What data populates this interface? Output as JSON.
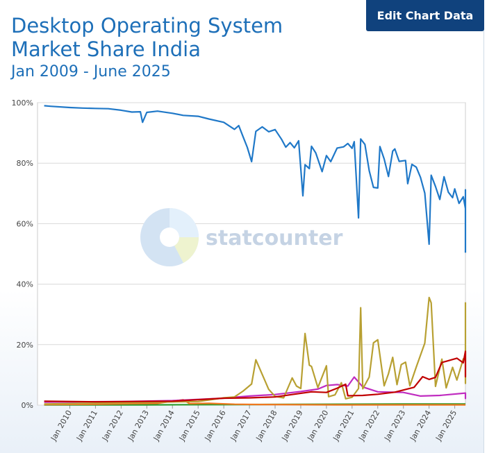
{
  "header": {
    "title": "Desktop Operating System Market Share India",
    "subtitle": "Jan 2009 - June 2025",
    "edit_button_label": "Edit Chart Data"
  },
  "watermark": {
    "text": "statcounter"
  },
  "colors": {
    "windows": "#1f78c8",
    "other": "#b8a032",
    "macos": "#c00000",
    "linux": "#c02cc0",
    "chromeos": "#2a9a2a",
    "unknown": "#f07820",
    "background_gradient": "#eef3f9"
  },
  "chart_data": {
    "type": "line",
    "title": "Desktop Operating System Market Share India",
    "subtitle": "Jan 2009 - June 2025",
    "x_start": "2009-01",
    "x_end": "2025-06",
    "ylim": [
      0,
      100
    ],
    "yticks": [
      "0%",
      "20%",
      "40%",
      "60%",
      "80%",
      "100%"
    ],
    "ytick_values": [
      0,
      20,
      40,
      60,
      80,
      100
    ],
    "xticks": [
      "Jan 2010",
      "Jan 2011",
      "Jan 2012",
      "Jan 2013",
      "Jan 2014",
      "Jan 2015",
      "Jan 2016",
      "Jan 2017",
      "Jan 2018",
      "Jan 2019",
      "Jan 2020",
      "Jan 2021",
      "Jan 2022",
      "Jan 2023",
      "Jan 2024",
      "Jan 2025"
    ],
    "grid": true,
    "legend": "none",
    "series": [
      {
        "color": "#1f78c8",
        "points": [
          [
            "2009-01",
            99
          ],
          [
            "2009-04",
            98.8
          ],
          [
            "2010-01",
            98.4
          ],
          [
            "2010-07",
            98.2
          ],
          [
            "2011-01",
            98.1
          ],
          [
            "2011-07",
            98
          ],
          [
            "2012-01",
            97.5
          ],
          [
            "2012-06",
            96.9
          ],
          [
            "2012-10",
            97
          ],
          [
            "2012-11",
            93.5
          ],
          [
            "2013-01",
            96.8
          ],
          [
            "2013-06",
            97.2
          ],
          [
            "2014-01",
            96.5
          ],
          [
            "2014-06",
            95.8
          ],
          [
            "2015-01",
            95.5
          ],
          [
            "2015-06",
            94.6
          ],
          [
            "2016-01",
            93.5
          ],
          [
            "2016-06",
            91.2
          ],
          [
            "2016-08",
            92.4
          ],
          [
            "2016-10",
            88.8
          ],
          [
            "2016-12",
            85.2
          ],
          [
            "2017-02",
            80.5
          ],
          [
            "2017-04",
            90.5
          ],
          [
            "2017-07",
            92
          ],
          [
            "2017-10",
            90.4
          ],
          [
            "2018-01",
            91.1
          ],
          [
            "2018-04",
            87.9
          ],
          [
            "2018-06",
            85.3
          ],
          [
            "2018-08",
            86.8
          ],
          [
            "2018-10",
            85.1
          ],
          [
            "2018-12",
            87.4
          ],
          [
            "2019-02",
            69.2
          ],
          [
            "2019-03",
            79.5
          ],
          [
            "2019-05",
            78.2
          ],
          [
            "2019-06",
            85.6
          ],
          [
            "2019-08",
            83.4
          ],
          [
            "2019-11",
            77.2
          ],
          [
            "2020-01",
            82.5
          ],
          [
            "2020-03",
            80.5
          ],
          [
            "2020-06",
            85
          ],
          [
            "2020-09",
            85.4
          ],
          [
            "2020-11",
            86.5
          ],
          [
            "2021-01",
            84.9
          ],
          [
            "2021-02",
            87.1
          ],
          [
            "2021-04",
            61.9
          ],
          [
            "2021-05",
            88
          ],
          [
            "2021-07",
            86.2
          ],
          [
            "2021-09",
            77.5
          ],
          [
            "2021-11",
            72
          ],
          [
            "2022-01",
            71.8
          ],
          [
            "2022-02",
            85.5
          ],
          [
            "2022-04",
            81.4
          ],
          [
            "2022-06",
            75.6
          ],
          [
            "2022-08",
            84
          ],
          [
            "2022-09",
            84.7
          ],
          [
            "2022-11",
            80.6
          ],
          [
            "2023-02",
            80.9
          ],
          [
            "2023-03",
            73.2
          ],
          [
            "2023-05",
            79.6
          ],
          [
            "2023-07",
            78.7
          ],
          [
            "2023-09",
            75.3
          ],
          [
            "2023-11",
            70.1
          ],
          [
            "2024-01",
            53.2
          ],
          [
            "2024-02",
            76
          ],
          [
            "2024-04",
            72.3
          ],
          [
            "2024-06",
            68
          ],
          [
            "2024-08",
            75.5
          ],
          [
            "2024-10",
            70.4
          ],
          [
            "2024-12",
            68.6
          ],
          [
            "2025-01",
            71.5
          ],
          [
            "2025-03",
            66.7
          ],
          [
            "2025-05",
            68.9
          ],
          [
            "2025-07",
            65
          ],
          [
            "2025-09",
            61.9
          ],
          [
            "2025-11",
            71.2
          ],
          [
            "2026-01",
            62.9
          ],
          [
            "2026-03",
            50.4
          ]
        ]
      },
      {
        "color": "#b8a032",
        "points": [
          [
            "2009-01",
            0.4
          ],
          [
            "2015-01",
            1.2
          ],
          [
            "2016-01",
            2.4
          ],
          [
            "2016-06",
            2.7
          ],
          [
            "2016-10",
            4.6
          ],
          [
            "2017-02",
            7
          ],
          [
            "2017-04",
            15
          ],
          [
            "2017-08",
            8.5
          ],
          [
            "2017-10",
            5.2
          ],
          [
            "2018-01",
            2.9
          ],
          [
            "2018-05",
            2.4
          ],
          [
            "2018-09",
            9
          ],
          [
            "2018-11",
            6.3
          ],
          [
            "2019-01",
            5.5
          ],
          [
            "2019-03",
            23.7
          ],
          [
            "2019-05",
            13.2
          ],
          [
            "2019-06",
            12.8
          ],
          [
            "2019-09",
            5.8
          ],
          [
            "2020-01",
            13
          ],
          [
            "2020-02",
            2.8
          ],
          [
            "2020-05",
            3.4
          ],
          [
            "2020-08",
            7.4
          ],
          [
            "2020-10",
            2.1
          ],
          [
            "2021-01",
            2.6
          ],
          [
            "2021-04",
            5.5
          ],
          [
            "2021-05",
            32.2
          ],
          [
            "2021-06",
            5.4
          ],
          [
            "2021-09",
            9.3
          ],
          [
            "2021-11",
            20.6
          ],
          [
            "2022-01",
            21.6
          ],
          [
            "2022-04",
            6.4
          ],
          [
            "2022-06",
            10.4
          ],
          [
            "2022-08",
            15.8
          ],
          [
            "2022-10",
            6.8
          ],
          [
            "2022-12",
            13.4
          ],
          [
            "2023-02",
            14.2
          ],
          [
            "2023-04",
            6.4
          ],
          [
            "2023-07",
            12.6
          ],
          [
            "2023-11",
            20.5
          ],
          [
            "2024-01",
            35.6
          ],
          [
            "2024-02",
            33.8
          ],
          [
            "2024-04",
            6.2
          ],
          [
            "2024-07",
            15.2
          ],
          [
            "2024-09",
            5.7
          ],
          [
            "2024-12",
            12.5
          ],
          [
            "2025-02",
            8.3
          ],
          [
            "2025-05",
            15.3
          ],
          [
            "2025-08",
            15.1
          ],
          [
            "2025-09",
            7.2
          ],
          [
            "2025-12",
            24.6
          ],
          [
            "2026-02",
            15.4
          ],
          [
            "2026-04",
            24.2
          ],
          [
            "2026-06",
            34
          ]
        ]
      },
      {
        "color": "#c00000",
        "points": [
          [
            "2009-01",
            1.3
          ],
          [
            "2011-01",
            1.1
          ],
          [
            "2014-01",
            1.3
          ],
          [
            "2016-01",
            2.3
          ],
          [
            "2017-01",
            2.4
          ],
          [
            "2018-01",
            2.7
          ],
          [
            "2018-09",
            3.5
          ],
          [
            "2019-06",
            4.4
          ],
          [
            "2020-01",
            4.2
          ],
          [
            "2020-06",
            5.6
          ],
          [
            "2020-10",
            6.9
          ],
          [
            "2020-11",
            3.1
          ],
          [
            "2021-06",
            3.2
          ],
          [
            "2022-01",
            3.6
          ],
          [
            "2022-09",
            4.3
          ],
          [
            "2023-06",
            5.9
          ],
          [
            "2023-10",
            9.4
          ],
          [
            "2024-01",
            8.5
          ],
          [
            "2024-04",
            9.2
          ],
          [
            "2024-07",
            14.1
          ],
          [
            "2024-09",
            14.5
          ],
          [
            "2024-12",
            15.1
          ],
          [
            "2025-02",
            15.5
          ],
          [
            "2025-05",
            14
          ],
          [
            "2025-09",
            17.8
          ],
          [
            "2025-12",
            9.6
          ],
          [
            "2026-03",
            9.4
          ],
          [
            "2026-06",
            10.8
          ]
        ]
      },
      {
        "color": "#c02cc0",
        "points": [
          [
            "2009-01",
            1
          ],
          [
            "2012-01",
            1.2
          ],
          [
            "2014-01",
            1.5
          ],
          [
            "2016-01",
            2.3
          ],
          [
            "2017-01",
            3
          ],
          [
            "2018-01",
            3.5
          ],
          [
            "2019-01",
            4.5
          ],
          [
            "2019-09",
            5.3
          ],
          [
            "2020-01",
            6.5
          ],
          [
            "2020-06",
            6.8
          ],
          [
            "2020-11",
            6.3
          ],
          [
            "2021-02",
            9.3
          ],
          [
            "2021-06",
            6
          ],
          [
            "2022-01",
            4.4
          ],
          [
            "2023-01",
            4.2
          ],
          [
            "2023-09",
            3
          ],
          [
            "2024-06",
            3.2
          ],
          [
            "2025-06",
            4
          ],
          [
            "2026-01",
            2.2
          ],
          [
            "2026-06",
            2.6
          ]
        ]
      },
      {
        "color": "#2a9a2a",
        "points": [
          [
            "2009-01",
            0.1
          ],
          [
            "2013-01",
            0.1
          ],
          [
            "2017-01",
            0.2
          ],
          [
            "2020-01",
            0.3
          ],
          [
            "2023-01",
            0.4
          ],
          [
            "2026-06",
            0.4
          ]
        ]
      },
      {
        "color": "#f07820",
        "points": [
          [
            "2009-01",
            0.2
          ],
          [
            "2011-01",
            0.3
          ],
          [
            "2012-06",
            0.5
          ],
          [
            "2013-06",
            0.6
          ],
          [
            "2014-06",
            1.8
          ],
          [
            "2014-09",
            0.5
          ],
          [
            "2015-06",
            0.6
          ],
          [
            "2016-06",
            0.3
          ],
          [
            "2017-06",
            0.2
          ],
          [
            "2020-06",
            0.1
          ],
          [
            "2026-06",
            0.1
          ]
        ]
      }
    ]
  }
}
